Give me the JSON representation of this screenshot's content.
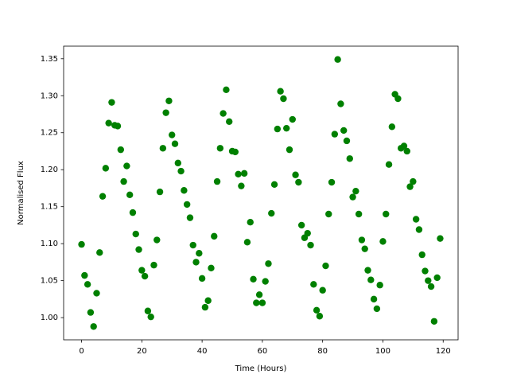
{
  "chart_data": {
    "type": "scatter",
    "xlabel": "Time (Hours)",
    "ylabel": "Normalised Flux",
    "x": [
      0,
      1,
      2,
      3,
      4,
      5,
      6,
      7,
      8,
      9,
      10,
      11,
      12,
      13,
      14,
      15,
      16,
      17,
      18,
      19,
      20,
      21,
      22,
      23,
      24,
      25,
      26,
      27,
      28,
      29,
      30,
      31,
      32,
      33,
      34,
      35,
      36,
      37,
      38,
      39,
      40,
      41,
      42,
      43,
      44,
      45,
      46,
      47,
      48,
      49,
      50,
      51,
      52,
      53,
      54,
      55,
      56,
      57,
      58,
      59,
      60,
      61,
      62,
      63,
      64,
      65,
      66,
      67,
      68,
      69,
      70,
      71,
      72,
      73,
      74,
      75,
      76,
      77,
      78,
      79,
      80,
      81,
      82,
      83,
      84,
      85,
      86,
      87,
      88,
      89,
      90,
      91,
      92,
      93,
      94,
      95,
      96,
      97,
      98,
      99,
      100,
      101,
      102,
      103,
      104,
      105,
      106,
      107,
      108,
      109,
      110,
      111,
      112,
      113,
      114,
      115,
      116,
      117,
      118,
      119
    ],
    "series": [
      {
        "color": "#008000",
        "values": [
          1.099,
          1.057,
          1.045,
          1.007,
          0.988,
          1.033,
          1.088,
          1.164,
          1.202,
          1.263,
          1.291,
          1.26,
          1.259,
          1.227,
          1.184,
          1.205,
          1.166,
          1.142,
          1.113,
          1.092,
          1.064,
          1.056,
          1.009,
          1.001,
          1.071,
          1.105,
          1.17,
          1.229,
          1.277,
          1.293,
          1.247,
          1.235,
          1.209,
          1.198,
          1.172,
          1.153,
          1.135,
          1.098,
          1.075,
          1.087,
          1.053,
          1.014,
          1.023,
          1.067,
          1.11,
          1.184,
          1.229,
          1.276,
          1.308,
          1.265,
          1.225,
          1.224,
          1.194,
          1.178,
          1.195,
          1.102,
          1.129,
          1.052,
          1.02,
          1.031,
          1.02,
          1.049,
          1.073,
          1.141,
          1.18,
          1.255,
          1.306,
          1.296,
          1.256,
          1.227,
          1.268,
          1.193,
          1.183,
          1.125,
          1.108,
          1.114,
          1.098,
          1.045,
          1.01,
          1.002,
          1.037,
          1.07,
          1.14,
          1.183,
          1.248,
          1.349,
          1.289,
          1.253,
          1.239,
          1.215,
          1.163,
          1.171,
          1.14,
          1.105,
          1.093,
          1.064,
          1.051,
          1.025,
          1.012,
          1.044,
          1.103,
          1.14,
          1.207,
          1.258,
          1.302,
          1.296,
          1.229,
          1.232,
          1.225,
          1.177,
          1.184,
          1.133,
          1.119,
          1.085,
          1.063,
          1.05,
          1.042,
          0.995,
          1.054,
          1.107
        ]
      }
    ],
    "xlim": [
      -5.95,
      124.95
    ],
    "ylim": [
      0.97,
      1.367
    ],
    "xticks": [
      0,
      20,
      40,
      60,
      80,
      100,
      120
    ],
    "yticks": [
      {
        "value": 1.0,
        "label": "1.00"
      },
      1.05,
      {
        "value": 1.1,
        "label": "1.10"
      },
      1.15,
      {
        "value": 1.2,
        "label": "1.20"
      },
      1.25,
      {
        "value": 1.3,
        "label": "1.30"
      },
      1.35
    ],
    "grid": false
  }
}
